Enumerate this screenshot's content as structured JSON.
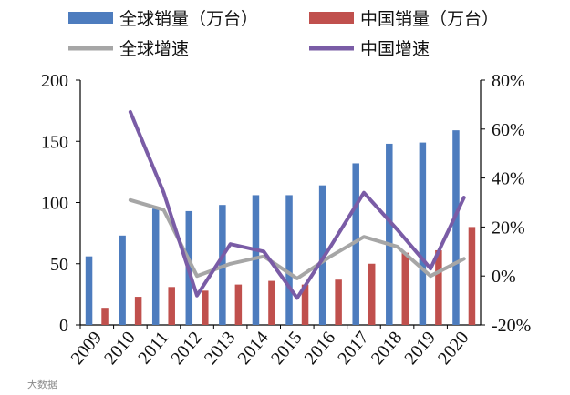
{
  "chart_data": {
    "type": "bar",
    "categories": [
      "2009",
      "2010",
      "2011",
      "2012",
      "2013",
      "2014",
      "2015",
      "2016",
      "2017",
      "2018",
      "2019",
      "2020"
    ],
    "series": [
      {
        "name": "全球销量（万台）",
        "kind": "bar",
        "axis": "left",
        "color": "#4d7cbe",
        "values": [
          56,
          73,
          95,
          93,
          98,
          106,
          106,
          114,
          132,
          148,
          149,
          159
        ]
      },
      {
        "name": "中国销量（万台）",
        "kind": "bar",
        "axis": "left",
        "color": "#c0504d",
        "values": [
          14,
          23,
          31,
          28,
          33,
          36,
          33,
          37,
          50,
          59,
          61,
          80
        ]
      },
      {
        "name": "全球增速",
        "kind": "line",
        "axis": "right",
        "color": "#a6a6a6",
        "values": [
          null,
          31,
          27,
          0,
          5,
          8,
          -1,
          8,
          16,
          12,
          0,
          7
        ]
      },
      {
        "name": "中国增速",
        "kind": "line",
        "axis": "right",
        "color": "#7a5ca6",
        "values": [
          null,
          67,
          34,
          -8,
          13,
          10,
          -9,
          12,
          34,
          19,
          3,
          32
        ]
      }
    ],
    "y_left": {
      "min": 0,
      "max": 200,
      "ticks": [
        "0",
        "50",
        "100",
        "150",
        "200"
      ],
      "tick_values": [
        0,
        50,
        100,
        150,
        200
      ]
    },
    "y_right": {
      "min": -20,
      "max": 80,
      "ticks": [
        "-20%",
        "0%",
        "20%",
        "40%",
        "60%",
        "80%"
      ],
      "tick_values": [
        -20,
        0,
        20,
        40,
        60,
        80
      ]
    },
    "legend_position": "top",
    "grid": false
  },
  "watermark": "大数据"
}
